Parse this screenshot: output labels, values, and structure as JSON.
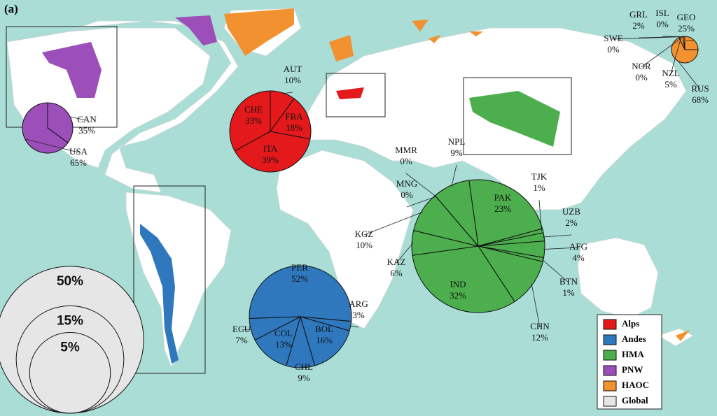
{
  "panel_label": "(a)",
  "pies": [
    {
      "slices": [
        {
          "name": "AUT",
          "value": 10,
          "value_label": "10%"
        },
        {
          "name": "FRA",
          "value": 18,
          "value_label": "18%"
        },
        {
          "name": "ITA",
          "value": 39,
          "value_label": "39%"
        },
        {
          "name": "CHE",
          "value": 33,
          "value_label": "33%"
        }
      ]
    },
    {
      "slices": [
        {
          "name": "PER",
          "value": 52,
          "value_label": "52%"
        },
        {
          "name": "ARG",
          "value": 3,
          "value_label": "3%"
        },
        {
          "name": "BOL",
          "value": 16,
          "value_label": "16%"
        },
        {
          "name": "CHL",
          "value": 9,
          "value_label": "9%"
        },
        {
          "name": "COL",
          "value": 13,
          "value_label": "13%"
        },
        {
          "name": "ECU",
          "value": 7,
          "value_label": "7%"
        }
      ]
    },
    {
      "slices": [
        {
          "name": "PAK",
          "value": 23,
          "value_label": "23%"
        },
        {
          "name": "TJK",
          "value": 1,
          "value_label": "1%"
        },
        {
          "name": "UZB",
          "value": 2,
          "value_label": "2%"
        },
        {
          "name": "AFG",
          "value": 4,
          "value_label": "4%"
        },
        {
          "name": "BTN",
          "value": 1,
          "value_label": "1%"
        },
        {
          "name": "CHN",
          "value": 12,
          "value_label": "12%"
        },
        {
          "name": "IND",
          "value": 32,
          "value_label": "32%"
        },
        {
          "name": "KAZ",
          "value": 6,
          "value_label": "6%"
        },
        {
          "name": "KGZ",
          "value": 10,
          "value_label": "10%"
        },
        {
          "name": "MNG",
          "value": 0,
          "value_label": "0%"
        },
        {
          "name": "MMR",
          "value": 0,
          "value_label": "0%"
        },
        {
          "name": "NPL",
          "value": 9,
          "value_label": "9%"
        }
      ]
    },
    {
      "slices": [
        {
          "name": "CAN",
          "value": 35,
          "value_label": "35%"
        },
        {
          "name": "USA",
          "value": 65,
          "value_label": "65%"
        }
      ]
    },
    {
      "slices": [
        {
          "name": "GEO",
          "value": 25,
          "value_label": "25%"
        },
        {
          "name": "RUS",
          "value": 68,
          "value_label": "68%"
        },
        {
          "name": "NZL",
          "value": 5,
          "value_label": "5%"
        },
        {
          "name": "NOR",
          "value": 0,
          "value_label": "0%"
        },
        {
          "name": "SWE",
          "value": 0,
          "value_label": "0%"
        },
        {
          "name": "GRL",
          "value": 2,
          "value_label": "2%"
        },
        {
          "name": "ISL",
          "value": 0,
          "value_label": "0%"
        }
      ]
    }
  ],
  "global_scale": {
    "circles": [
      {
        "value": 50,
        "label": "50%"
      },
      {
        "value": 15,
        "label": "15%"
      },
      {
        "value": 5,
        "label": "5%"
      }
    ]
  },
  "legend": {
    "items": [
      {
        "label": "Alps",
        "color": "#e3191c"
      },
      {
        "label": "Andes",
        "color": "#2f78bd"
      },
      {
        "label": "HMA",
        "color": "#4cae4c"
      },
      {
        "label": "PNW",
        "color": "#9c4fb8"
      },
      {
        "label": "HAOC",
        "color": "#f29130"
      },
      {
        "label": "Global",
        "color": "#e6e6e6"
      }
    ]
  }
}
